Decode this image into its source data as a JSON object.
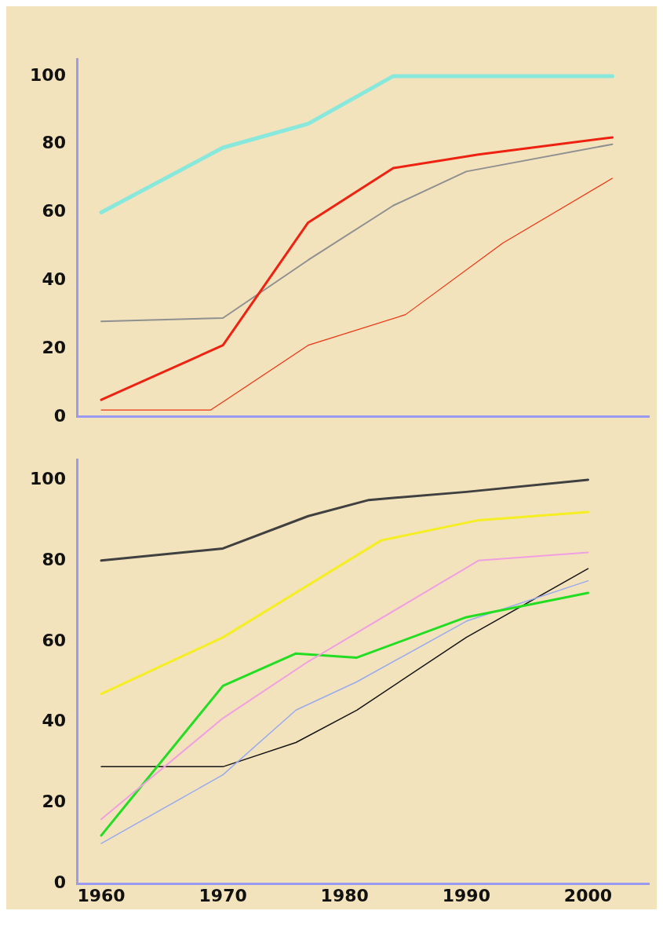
{
  "chart_data": [
    {
      "type": "line",
      "xlim": [
        1958,
        2005
      ],
      "xticks": [
        1960,
        1970,
        1980,
        1990,
        2000
      ],
      "ylim": [
        0,
        105
      ],
      "yticks": [
        0,
        20,
        40,
        60,
        80,
        100
      ],
      "tick_labels": "y",
      "grid": false,
      "legend": false,
      "marker": "none",
      "series": [
        {
          "color": "#88e8dc",
          "x": [
            1960,
            1970,
            1977,
            1984,
            2002
          ],
          "values": [
            60,
            79,
            86,
            100,
            100
          ]
        },
        {
          "color": "#ee2211",
          "x": [
            1960,
            1970,
            1977,
            1984,
            1991,
            2002
          ],
          "values": [
            5,
            21,
            57,
            73,
            77,
            82
          ]
        },
        {
          "color": "#909090",
          "x": [
            1960,
            1970,
            1977,
            1984,
            1990,
            2002
          ],
          "values": [
            28,
            29,
            46,
            62,
            72,
            80
          ]
        },
        {
          "color": "#ee3311",
          "x": [
            1960,
            1969,
            1977,
            1985,
            1993,
            2002
          ],
          "values": [
            2,
            2,
            21,
            30,
            51,
            70
          ]
        }
      ]
    },
    {
      "type": "line",
      "xlim": [
        1958,
        2005
      ],
      "xticks": [
        1960,
        1970,
        1980,
        1990,
        2000
      ],
      "ylim": [
        0,
        105
      ],
      "yticks": [
        0,
        20,
        40,
        60,
        80,
        100
      ],
      "grid": false,
      "legend": false,
      "marker": "none",
      "series": [
        {
          "color": "#404040",
          "x": [
            1960,
            1970,
            1977,
            1982,
            1990,
            2000
          ],
          "values": [
            80,
            83,
            91,
            95,
            97,
            100
          ]
        },
        {
          "color": "#f5ee22",
          "x": [
            1960,
            1970,
            1983,
            1991,
            2000
          ],
          "values": [
            47,
            61,
            85,
            90,
            92
          ]
        },
        {
          "color": "#f0a0e0",
          "x": [
            1960,
            1970,
            1977,
            1991,
            2000
          ],
          "values": [
            16,
            41,
            55,
            80,
            82
          ]
        },
        {
          "color": "#22dd22",
          "x": [
            1960,
            1970,
            1976,
            1981,
            1990,
            2000
          ],
          "values": [
            12,
            49,
            57,
            56,
            66,
            72
          ]
        },
        {
          "color": "#99aaee",
          "x": [
            1960,
            1970,
            1976,
            1981,
            1990,
            2000
          ],
          "values": [
            10,
            27,
            43,
            50,
            65,
            75
          ]
        },
        {
          "color": "#151515",
          "x": [
            1960,
            1970,
            1976,
            1981,
            1990,
            2000
          ],
          "values": [
            29,
            29,
            35,
            43,
            61,
            78
          ]
        }
      ]
    }
  ]
}
